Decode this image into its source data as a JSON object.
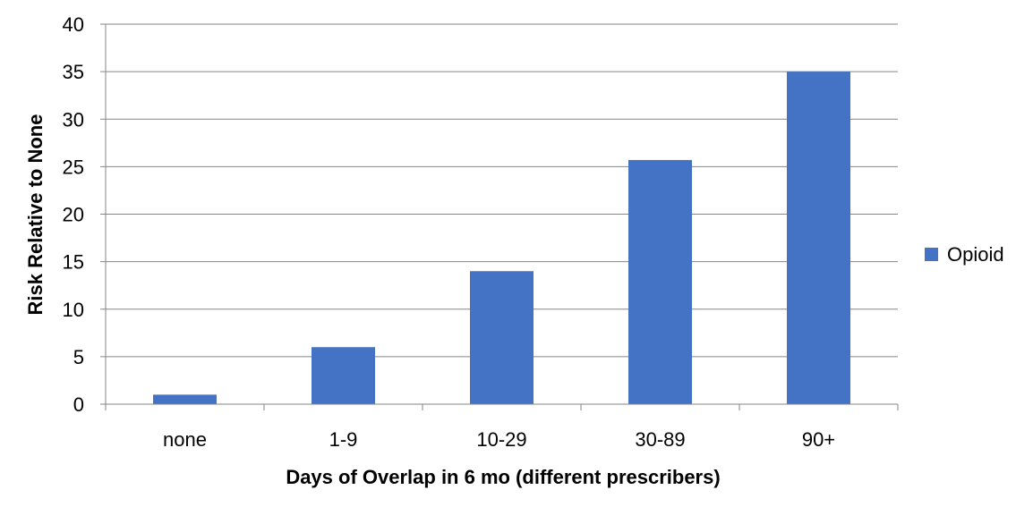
{
  "chart_data": {
    "type": "bar",
    "title": "",
    "xlabel": "Days of Overlap in 6 mo (different prescribers)",
    "ylabel": "Risk Relative to None",
    "categories": [
      "none",
      "1-9",
      "10-29",
      "30-89",
      "90+"
    ],
    "series": [
      {
        "name": "Opioid",
        "color": "#4472C4",
        "values": [
          1,
          6,
          14,
          25.7,
          35
        ]
      }
    ],
    "ylim": [
      0,
      40
    ],
    "yticks": [
      0,
      5,
      10,
      15,
      20,
      25,
      30,
      35,
      40
    ],
    "grid": true,
    "legend_position": "right"
  }
}
